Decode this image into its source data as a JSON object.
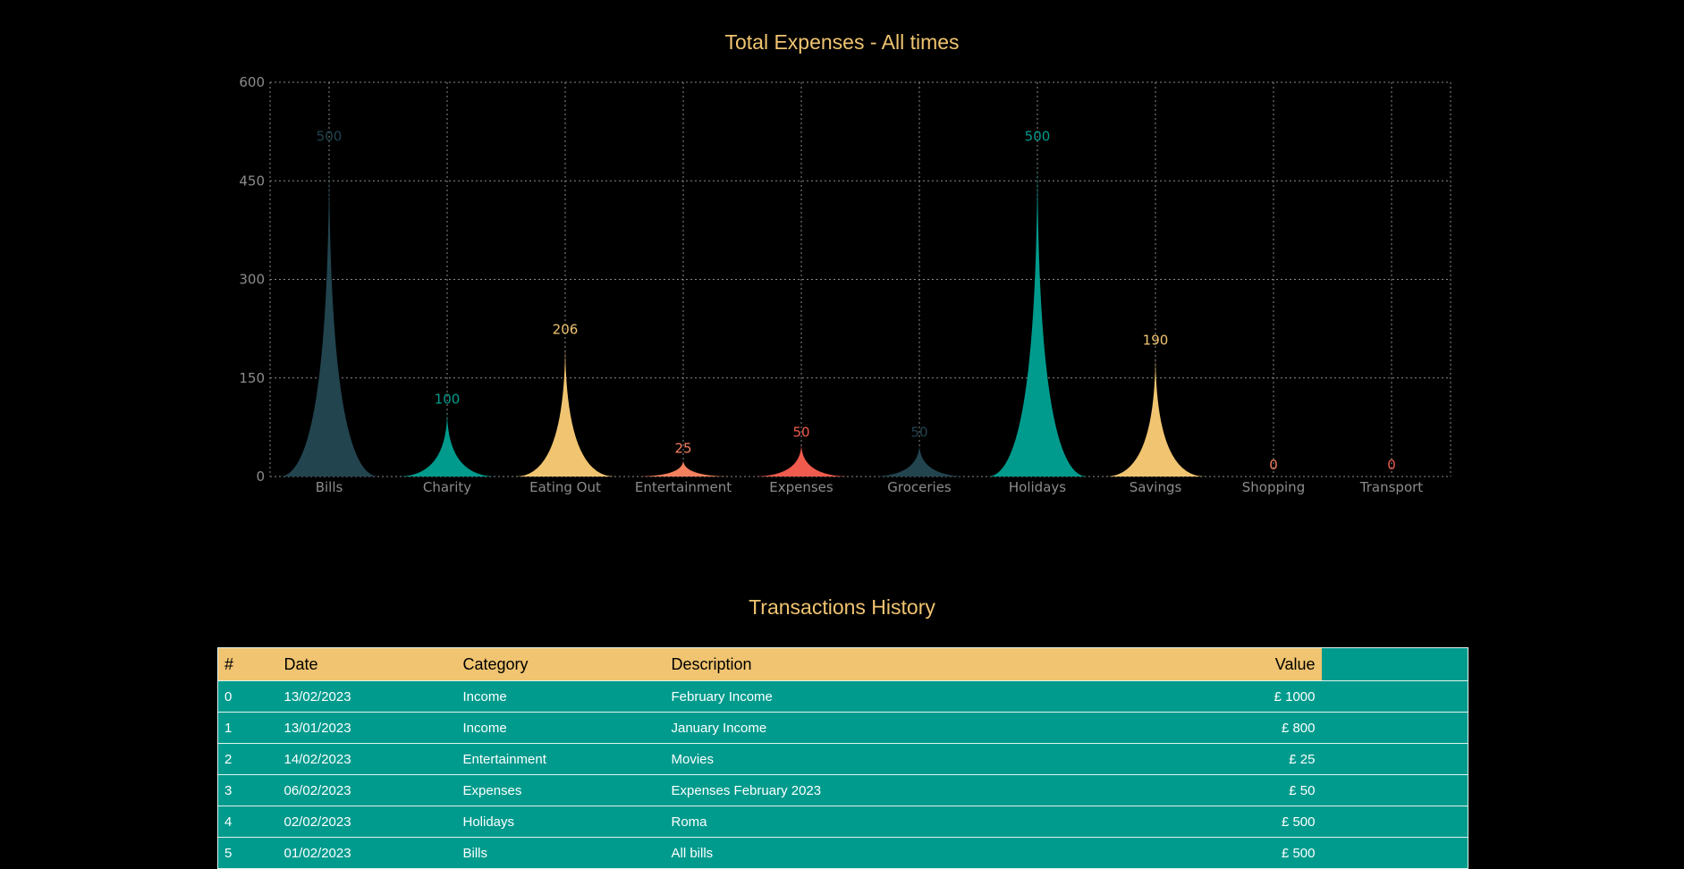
{
  "chart_data": {
    "type": "bar",
    "title": "Total Expenses - All times",
    "categories": [
      "Bills",
      "Charity",
      "Eating Out",
      "Entertainment",
      "Expenses",
      "Groceries",
      "Holidays",
      "Savings",
      "Shopping",
      "Transport"
    ],
    "values": [
      500,
      100,
      206,
      25,
      50,
      50,
      500,
      190,
      0,
      0
    ],
    "colors": [
      "#22444f",
      "#009b8d",
      "#f0c470",
      "#f3805e",
      "#ef5b4d",
      "#22444f",
      "#009b8d",
      "#f0c470",
      "#f3805e",
      "#ef5b4d"
    ],
    "label_colors": [
      "#22444f",
      "#009b8d",
      "#f0c470",
      "#f3805e",
      "#ef5b4d",
      "#22444f",
      "#009b8d",
      "#f0c470",
      "#f3805e",
      "#ef5b4d"
    ],
    "yticks": [
      0,
      150,
      300,
      450,
      600
    ],
    "ylim": [
      0,
      600
    ],
    "grid": true,
    "xlabel": "",
    "ylabel": ""
  },
  "transactions": {
    "title": "Transactions History",
    "columns": [
      "#",
      "Date",
      "Category",
      "Description",
      "Value"
    ],
    "rows": [
      [
        "0",
        "13/02/2023",
        "Income",
        "February Income",
        "£ 1000"
      ],
      [
        "1",
        "13/01/2023",
        "Income",
        "January Income",
        "£ 800"
      ],
      [
        "2",
        "14/02/2023",
        "Entertainment",
        "Movies",
        "£ 25"
      ],
      [
        "3",
        "06/02/2023",
        "Expenses",
        "Expenses February 2023",
        "£ 50"
      ],
      [
        "4",
        "02/02/2023",
        "Holidays",
        "Roma",
        "£ 500"
      ],
      [
        "5",
        "01/02/2023",
        "Bills",
        "All bills",
        "£ 500"
      ]
    ]
  }
}
